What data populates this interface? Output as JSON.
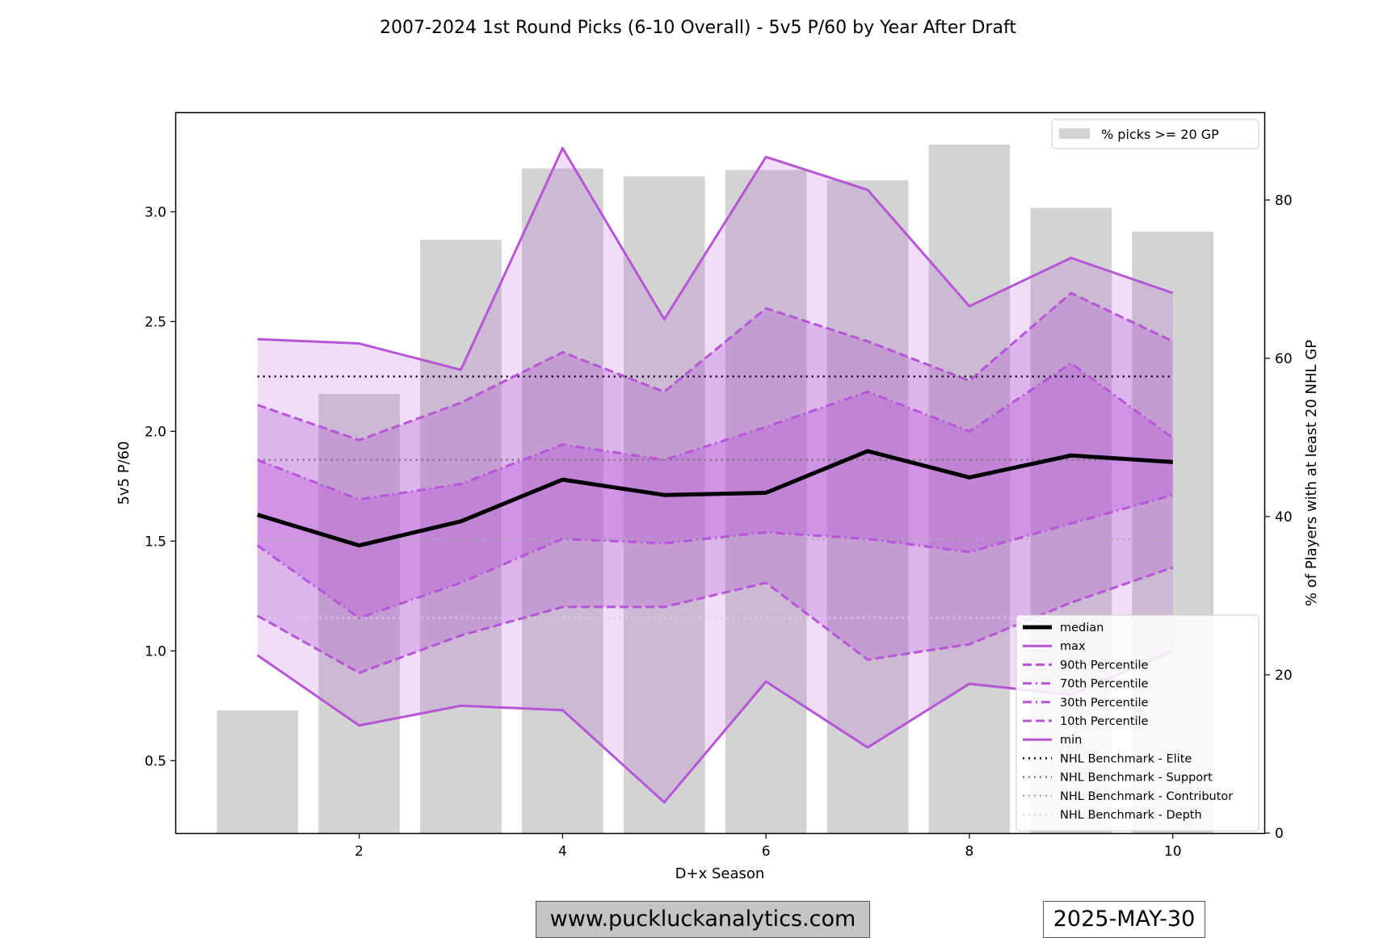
{
  "title": "2007-2024 1st Round Picks (6-10 Overall) - 5v5 P/60 by Year After Draft",
  "footer": {
    "website": "www.puckluckanalytics.com",
    "date": "2025-MAY-30"
  },
  "colors": {
    "purple": "#b655d6",
    "median": "#000000",
    "bar": "#d3d3d3",
    "elite": "#000000",
    "support": "#777777",
    "contributor": "#aaaaaa",
    "depth": "#d5d5d5"
  },
  "chart_data": {
    "type": "line",
    "xlabel": "D+x Season",
    "ylabel": "5v5 P/60",
    "y2label": "% of Players with at least 20 NHL GP",
    "x": [
      1,
      2,
      3,
      4,
      5,
      6,
      7,
      8,
      9,
      10
    ],
    "xlim": [
      0.2,
      10.9
    ],
    "ylim": [
      0.17,
      3.45
    ],
    "y2lim": [
      0,
      91
    ],
    "xticks": [
      2,
      4,
      6,
      8,
      10
    ],
    "yticks": [
      0.5,
      1.0,
      1.5,
      2.0,
      2.5,
      3.0
    ],
    "y2ticks": [
      0,
      20,
      40,
      60,
      80
    ],
    "bars": {
      "name": "% picks >= 20 GP",
      "values": [
        15.5,
        55.5,
        75,
        84,
        83,
        83.8,
        82.5,
        87,
        79,
        76
      ]
    },
    "series": [
      {
        "name": "median",
        "values": [
          1.62,
          1.48,
          1.59,
          1.78,
          1.71,
          1.72,
          1.91,
          1.79,
          1.89,
          1.86
        ],
        "style": "solid-thick"
      },
      {
        "name": "max",
        "values": [
          2.42,
          2.4,
          2.28,
          3.29,
          2.51,
          3.25,
          3.1,
          2.57,
          2.79,
          2.63
        ],
        "style": "solid"
      },
      {
        "name": "90th Percentile",
        "values": [
          2.12,
          1.96,
          2.13,
          2.36,
          2.18,
          2.56,
          2.41,
          2.23,
          2.63,
          2.41
        ],
        "style": "dashed"
      },
      {
        "name": "70th Percentile",
        "values": [
          1.87,
          1.69,
          1.76,
          1.94,
          1.87,
          2.02,
          2.18,
          2.0,
          2.31,
          1.97
        ],
        "style": "dashdot"
      },
      {
        "name": "30th Percentile",
        "values": [
          1.48,
          1.15,
          1.31,
          1.51,
          1.49,
          1.54,
          1.51,
          1.45,
          1.58,
          1.71
        ],
        "style": "dashdot"
      },
      {
        "name": "10th Percentile",
        "values": [
          1.16,
          0.9,
          1.07,
          1.2,
          1.2,
          1.31,
          0.96,
          1.03,
          1.22,
          1.38
        ],
        "style": "dashed"
      },
      {
        "name": "min",
        "values": [
          0.98,
          0.66,
          0.75,
          0.73,
          0.31,
          0.86,
          0.56,
          0.85,
          0.8,
          1.0
        ],
        "style": "solid"
      }
    ],
    "benchmarks": [
      {
        "name": "NHL Benchmark - Elite",
        "value": 2.25
      },
      {
        "name": "NHL Benchmark - Support",
        "value": 1.87
      },
      {
        "name": "NHL Benchmark - Contributor",
        "value": 1.51
      },
      {
        "name": "NHL Benchmark - Depth",
        "value": 1.15
      }
    ],
    "legend_placement": "lower-right",
    "bar_legend_placement": "upper-right",
    "grid": false
  }
}
